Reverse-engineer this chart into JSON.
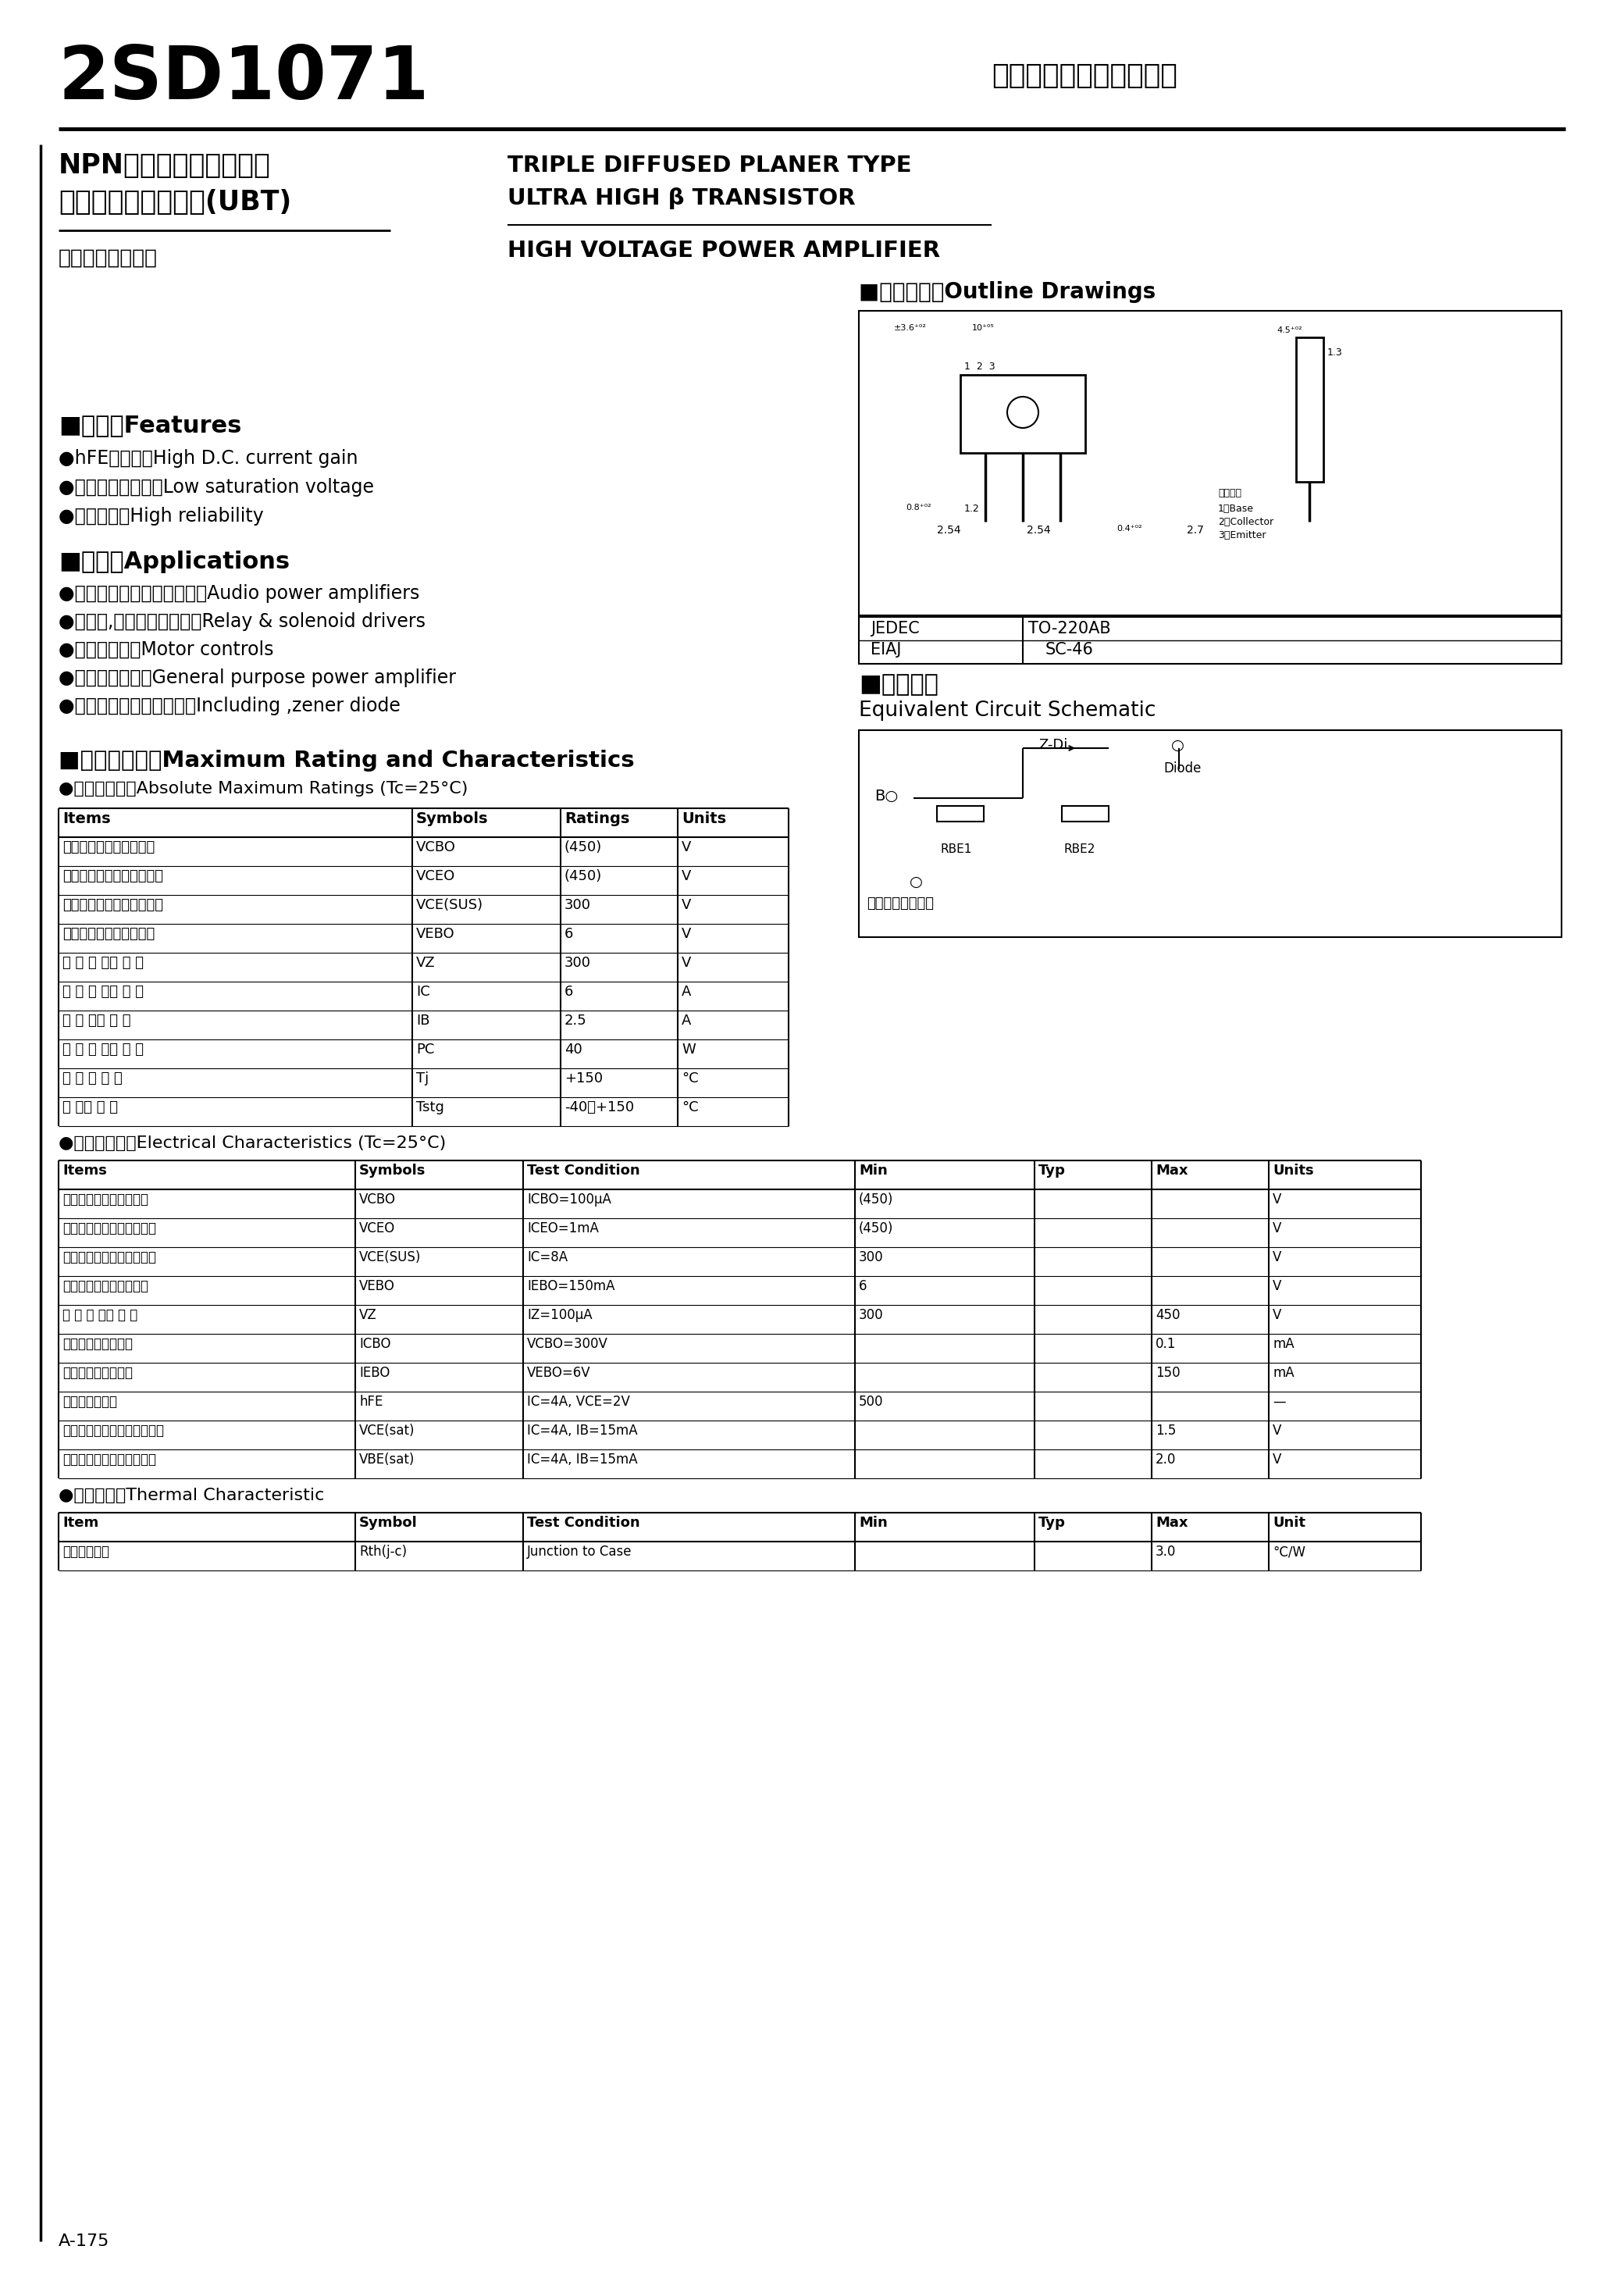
{
  "title": "2SD1071",
  "subtitle_jp": "富士パワートランジスタ",
  "type_jp": "NPN三重拡散プレーナ形",
  "type_jp2": "ウルトラハイベータ(UBT)",
  "type_en1": "TRIPLE DIFFUSED PLANER TYPE",
  "type_en2": "ULTRA HIGH β TRANSISTOR",
  "hv_amp": "HIGH VOLTAGE POWER AMPLIFIER",
  "usage_jp": "高耐圧電力増幅用",
  "features_title": "■特長：Features",
  "applications_title": "■用途：Applications",
  "maxrating_title": "■定格と特性：Maximum Rating and Characteristics",
  "abs_max_title": "●絶対最大格：Absolute Maximum Ratings (Tc=25°C)",
  "elec_title": "●電気的特性：Electrical Characteristics (Tc=25°C)",
  "thermal_title": "●熱的特性：Thermal Characteristic",
  "outline_title": "■外形寸法：Outline Drawings",
  "equiv_title": "■等価回路",
  "equiv_subtitle": "Equivalent Circuit Schematic",
  "jedec": "TO-220AB",
  "eiaj": "SC-46",
  "page_num": "A-175",
  "bg_color": "#ffffff",
  "text_color": "#000000"
}
